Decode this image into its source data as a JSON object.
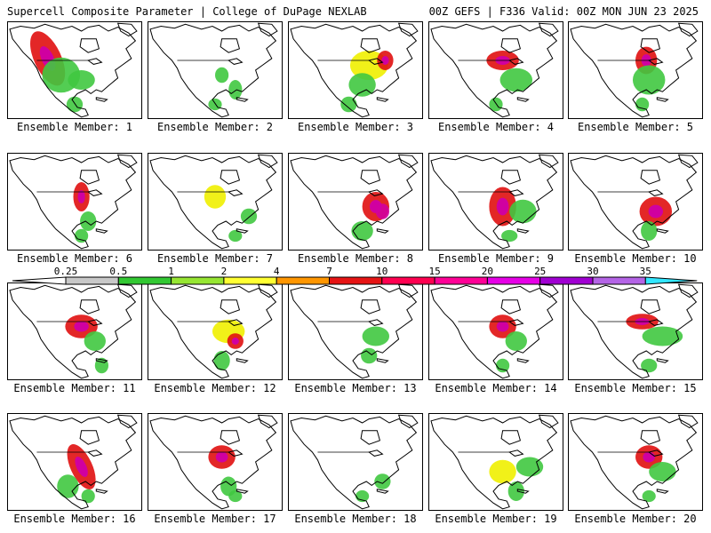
{
  "header": {
    "left": "Supercell Composite Parameter | College of DuPage NEXLAB",
    "right": "00Z GEFS | F336 Valid: 00Z MON JUN 23 2025"
  },
  "member_label_prefix": "Ensemble Member: ",
  "members": [
    {
      "label": "Ensemble Member: 1",
      "blobs": [
        [
          0.3,
          0.38,
          0.1,
          0.3,
          -25,
          "red"
        ],
        [
          0.4,
          0.55,
          0.14,
          0.18,
          0,
          "green"
        ],
        [
          0.55,
          0.6,
          0.1,
          0.1,
          0,
          "green"
        ],
        [
          0.5,
          0.85,
          0.06,
          0.08,
          0,
          "green"
        ]
      ]
    },
    {
      "label": "Ensemble Member: 2",
      "blobs": [
        [
          0.55,
          0.55,
          0.05,
          0.08,
          0,
          "green"
        ],
        [
          0.65,
          0.7,
          0.05,
          0.1,
          0,
          "green"
        ],
        [
          0.5,
          0.85,
          0.05,
          0.06,
          0,
          "green"
        ]
      ]
    },
    {
      "label": "Ensemble Member: 3",
      "blobs": [
        [
          0.6,
          0.45,
          0.14,
          0.15,
          0,
          "yellow"
        ],
        [
          0.72,
          0.4,
          0.06,
          0.1,
          0,
          "red"
        ],
        [
          0.55,
          0.65,
          0.1,
          0.12,
          0,
          "green"
        ],
        [
          0.45,
          0.85,
          0.06,
          0.08,
          0,
          "green"
        ]
      ]
    },
    {
      "label": "Ensemble Member: 4",
      "blobs": [
        [
          0.55,
          0.4,
          0.12,
          0.1,
          0,
          "red"
        ],
        [
          0.65,
          0.6,
          0.12,
          0.12,
          0,
          "green"
        ],
        [
          0.5,
          0.85,
          0.05,
          0.07,
          0,
          "green"
        ]
      ]
    },
    {
      "label": "Ensemble Member: 5",
      "blobs": [
        [
          0.58,
          0.4,
          0.08,
          0.14,
          0,
          "red"
        ],
        [
          0.6,
          0.6,
          0.12,
          0.15,
          0,
          "green"
        ],
        [
          0.55,
          0.85,
          0.05,
          0.07,
          0,
          "green"
        ]
      ]
    },
    {
      "label": "Ensemble Member: 6",
      "blobs": [
        [
          0.55,
          0.45,
          0.06,
          0.15,
          0,
          "red"
        ],
        [
          0.6,
          0.7,
          0.06,
          0.1,
          0,
          "green"
        ],
        [
          0.55,
          0.85,
          0.05,
          0.07,
          0,
          "green"
        ]
      ]
    },
    {
      "label": "Ensemble Member: 7",
      "blobs": [
        [
          0.5,
          0.45,
          0.08,
          0.12,
          0,
          "yellow"
        ],
        [
          0.75,
          0.65,
          0.06,
          0.08,
          0,
          "green"
        ],
        [
          0.65,
          0.85,
          0.05,
          0.06,
          0,
          "green"
        ]
      ]
    },
    {
      "label": "Ensemble Member: 8",
      "blobs": [
        [
          0.65,
          0.55,
          0.1,
          0.15,
          0,
          "red"
        ],
        [
          0.7,
          0.6,
          0.05,
          0.08,
          0,
          "magenta"
        ],
        [
          0.55,
          0.8,
          0.08,
          0.1,
          0,
          "green"
        ]
      ]
    },
    {
      "label": "Ensemble Member: 9",
      "blobs": [
        [
          0.55,
          0.55,
          0.1,
          0.2,
          0,
          "red"
        ],
        [
          0.7,
          0.6,
          0.1,
          0.12,
          0,
          "green"
        ],
        [
          0.6,
          0.85,
          0.06,
          0.06,
          0,
          "green"
        ]
      ]
    },
    {
      "label": "Ensemble Member: 10",
      "blobs": [
        [
          0.65,
          0.6,
          0.12,
          0.15,
          0,
          "red"
        ],
        [
          0.6,
          0.8,
          0.06,
          0.1,
          0,
          "green"
        ]
      ]
    },
    {
      "label": "Ensemble Member: 11",
      "blobs": [
        [
          0.55,
          0.45,
          0.12,
          0.12,
          0,
          "red"
        ],
        [
          0.65,
          0.6,
          0.08,
          0.1,
          0,
          "green"
        ],
        [
          0.7,
          0.85,
          0.05,
          0.08,
          0,
          "green"
        ]
      ]
    },
    {
      "label": "Ensemble Member: 12",
      "blobs": [
        [
          0.6,
          0.5,
          0.12,
          0.12,
          0,
          "yellow"
        ],
        [
          0.65,
          0.6,
          0.06,
          0.08,
          0,
          "red"
        ],
        [
          0.55,
          0.8,
          0.06,
          0.1,
          0,
          "green"
        ]
      ]
    },
    {
      "label": "Ensemble Member: 13",
      "blobs": [
        [
          0.65,
          0.55,
          0.1,
          0.1,
          0,
          "green"
        ],
        [
          0.6,
          0.75,
          0.06,
          0.08,
          0,
          "green"
        ]
      ]
    },
    {
      "label": "Ensemble Member: 14",
      "blobs": [
        [
          0.55,
          0.45,
          0.1,
          0.12,
          0,
          "red"
        ],
        [
          0.65,
          0.6,
          0.08,
          0.1,
          0,
          "green"
        ],
        [
          0.55,
          0.85,
          0.05,
          0.07,
          0,
          "green"
        ]
      ]
    },
    {
      "label": "Ensemble Member: 15",
      "blobs": [
        [
          0.55,
          0.4,
          0.12,
          0.08,
          0,
          "red"
        ],
        [
          0.7,
          0.55,
          0.15,
          0.1,
          0,
          "green"
        ],
        [
          0.6,
          0.85,
          0.06,
          0.07,
          0,
          "green"
        ]
      ]
    },
    {
      "label": "Ensemble Member: 16",
      "blobs": [
        [
          0.55,
          0.55,
          0.08,
          0.25,
          -25,
          "red"
        ],
        [
          0.45,
          0.75,
          0.08,
          0.12,
          0,
          "green"
        ],
        [
          0.6,
          0.85,
          0.05,
          0.07,
          0,
          "green"
        ]
      ]
    },
    {
      "label": "Ensemble Member: 17",
      "blobs": [
        [
          0.55,
          0.45,
          0.1,
          0.12,
          0,
          "red"
        ],
        [
          0.6,
          0.75,
          0.06,
          0.1,
          0,
          "green"
        ],
        [
          0.65,
          0.85,
          0.05,
          0.06,
          0,
          "green"
        ]
      ]
    },
    {
      "label": "Ensemble Member: 18",
      "blobs": [
        [
          0.7,
          0.7,
          0.06,
          0.08,
          0,
          "green"
        ],
        [
          0.55,
          0.85,
          0.05,
          0.06,
          0,
          "green"
        ]
      ]
    },
    {
      "label": "Ensemble Member: 19",
      "blobs": [
        [
          0.55,
          0.6,
          0.1,
          0.12,
          0,
          "yellow"
        ],
        [
          0.75,
          0.55,
          0.1,
          0.1,
          0,
          "green"
        ],
        [
          0.65,
          0.8,
          0.06,
          0.1,
          0,
          "green"
        ]
      ]
    },
    {
      "label": "Ensemble Member: 20",
      "blobs": [
        [
          0.6,
          0.45,
          0.1,
          0.12,
          0,
          "red"
        ],
        [
          0.7,
          0.6,
          0.1,
          0.1,
          0,
          "green"
        ],
        [
          0.6,
          0.85,
          0.05,
          0.06,
          0,
          "green"
        ]
      ]
    }
  ],
  "colorbar": {
    "labels": [
      "0.25",
      "0.5",
      "1",
      "2",
      "4",
      "7",
      "10",
      "15",
      "20",
      "25",
      "30",
      "35"
    ],
    "colors": [
      "#c8c8c8",
      "#32c832",
      "#96e632",
      "#ffff32",
      "#ff9600",
      "#e61414",
      "#ff0050",
      "#ff0096",
      "#e600e6",
      "#a000d2",
      "#b464e6",
      "#32e6ff"
    ]
  },
  "field_colors": {
    "green": "#40c840",
    "yellow": "#f0f000",
    "red": "#e01010",
    "magenta": "#d000a0",
    "grey": "#c8c8c8"
  }
}
